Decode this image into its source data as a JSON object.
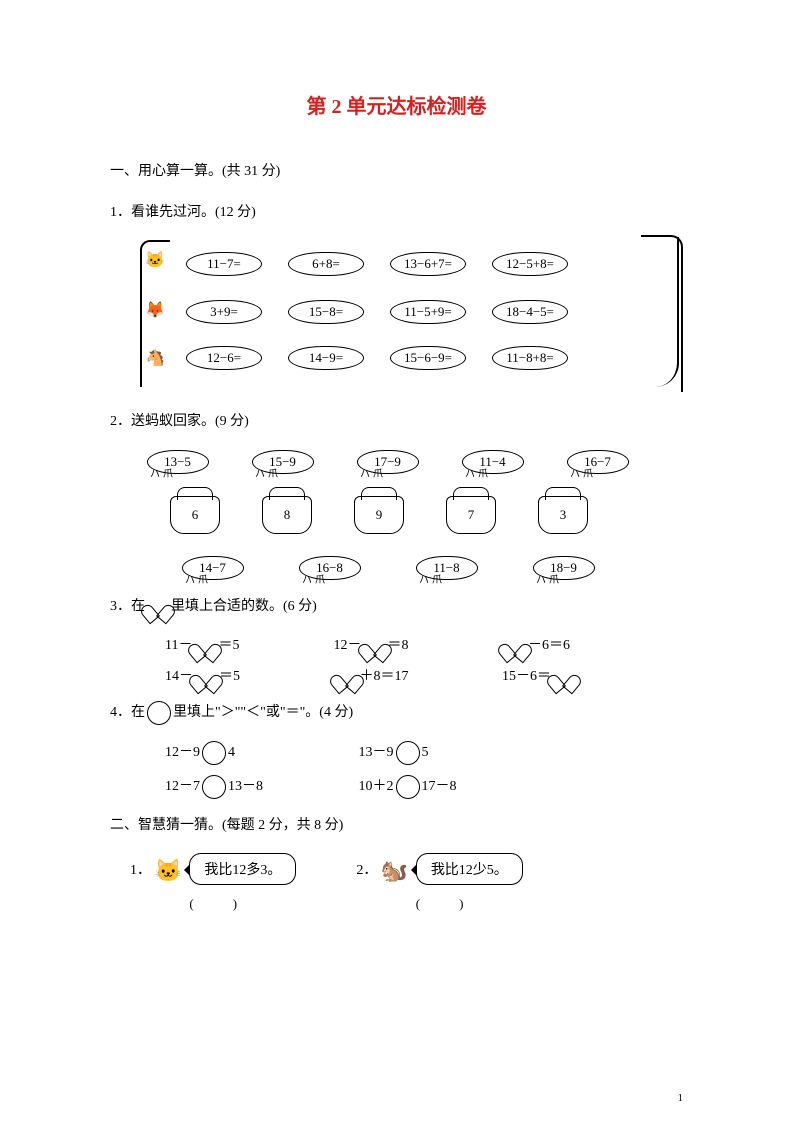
{
  "title": "第 2 单元达标检测卷",
  "s1": {
    "heading": "一、用心算一算。(共 31 分)"
  },
  "q1": {
    "title": "1．看谁先过河。(12 分)",
    "row1": [
      "11−7=",
      "6+8=",
      "13−6+7=",
      "12−5+8="
    ],
    "row2": [
      "3+9=",
      "15−8=",
      "11−5+9=",
      "18−4−5="
    ],
    "row3": [
      "12−6=",
      "14−9=",
      "15−6−9=",
      "11−8+8="
    ]
  },
  "q2": {
    "title": "2．送蚂蚁回家。(9 分)",
    "top": [
      "13−5",
      "15−9",
      "17−9",
      "11−4",
      "16−7"
    ],
    "houses": [
      "6",
      "8",
      "9",
      "7",
      "3"
    ],
    "bottom": [
      "14−7",
      "16−8",
      "11−8",
      "18−9"
    ]
  },
  "q3": {
    "title": "3．在        里填上合适的数。(6 分)",
    "r1": {
      "a": "11－",
      "a2": "＝5",
      "b": "12－",
      "b2": "＝8",
      "c": "",
      "c2": "－6＝6"
    },
    "r2": {
      "a": "14－",
      "a2": "＝5",
      "b": "",
      "b2": "＋8＝17",
      "c": "15－6＝",
      "c2": ""
    }
  },
  "q4": {
    "title": "4．在        里填上\"＞\"\"＜\"或\"＝\"。(4 分)",
    "r1": {
      "a1": "12－9",
      "a2": "4",
      "b1": "13－9",
      "b2": "5"
    },
    "r2": {
      "a1": "12－7",
      "a2": "13－8",
      "b1": "10＋2",
      "b2": "17－8"
    }
  },
  "s2": {
    "heading": "二、智慧猜一猜。(每题 2 分，共 8 分)",
    "items": [
      {
        "num": "1．",
        "speech": "我比12多3。",
        "ans": "(　　　)"
      },
      {
        "num": "2．",
        "speech": "我比12少5。",
        "ans": "(　　　)"
      }
    ]
  },
  "pagenum": "1",
  "colors": {
    "title": "#d91e1e"
  }
}
